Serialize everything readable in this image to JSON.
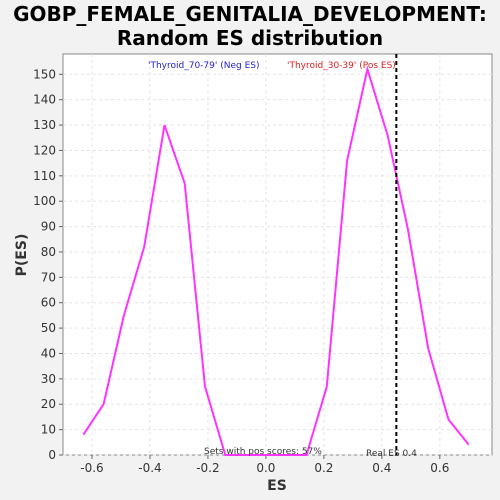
{
  "chart_data": {
    "type": "line",
    "title_lines": [
      "GOBP_FEMALE_GENITALIA_DEVELOPMENT:",
      "Random ES distribution"
    ],
    "xlabel": "ES",
    "ylabel": "P(ES)",
    "xlim": [
      -0.7,
      0.78
    ],
    "ylim": [
      0,
      158
    ],
    "x_ticks": [
      -0.6,
      -0.4,
      -0.2,
      0.0,
      0.2,
      0.4,
      0.6
    ],
    "x_tick_labels": [
      "-0.6",
      "-0.4",
      "-0.2",
      "0.0",
      "0.2",
      "0.4",
      "0.6"
    ],
    "y_ticks": [
      0,
      10,
      20,
      30,
      40,
      50,
      60,
      70,
      80,
      90,
      100,
      110,
      120,
      130,
      140,
      150
    ],
    "y_tick_labels": [
      "0",
      "10",
      "20",
      "30",
      "40",
      "50",
      "60",
      "70",
      "80",
      "90",
      "100",
      "110",
      "120",
      "130",
      "140",
      "150"
    ],
    "grid": true,
    "series": [
      {
        "color": "#ff33ff",
        "x": [
          -0.63,
          -0.56,
          -0.49,
          -0.42,
          -0.35,
          -0.28,
          -0.21,
          -0.14,
          0.14,
          0.21,
          0.28,
          0.35,
          0.42,
          0.49,
          0.56,
          0.63,
          0.7
        ],
        "y": [
          8,
          20,
          55,
          82,
          130,
          107,
          27,
          0,
          0,
          27,
          116,
          152,
          126,
          89,
          42,
          14,
          4
        ]
      }
    ],
    "vline": {
      "x": 0.45,
      "style": "dashed",
      "color": "#000000"
    },
    "legend": [
      {
        "text": "'Thyroid_70-79' (Neg ES)",
        "color": "#2222cc"
      },
      {
        "text": "'Thyroid_30-39' (Pos ES)",
        "color": "#dd2222"
      }
    ],
    "annotations": {
      "pos_scores": "Sets with pos scores: 57%",
      "real_es": "Real ES 0.4"
    }
  }
}
